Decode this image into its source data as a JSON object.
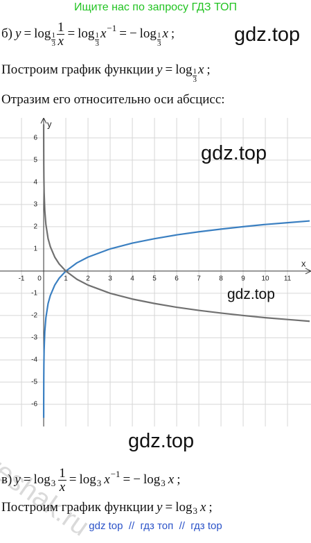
{
  "header": {
    "text": "Ищите нас по запросу ГДЗ ТОП"
  },
  "line_b": {
    "items": [
      "б)",
      "y",
      "=",
      "log",
      "1",
      "3",
      "1",
      "x",
      "=",
      "log",
      "1",
      "3",
      "x",
      "−1",
      "=",
      "−",
      "log",
      "1",
      "3",
      "x",
      ";"
    ]
  },
  "plot_b": {
    "items": [
      "Построим график функции",
      "y",
      "=",
      "log",
      "1",
      "3",
      "x",
      ";"
    ]
  },
  "reflect": {
    "text": "Отразим его относительно оси абсцисс:"
  },
  "watermarks": [
    "gdz.top",
    "gdz.top",
    "gdz.top",
    "gdz.top",
    "reshak.ru"
  ],
  "chart_data": {
    "type": "line",
    "x": [
      0.0007,
      0.0014,
      0.005,
      0.01,
      0.02,
      0.05,
      0.1,
      0.2,
      0.3,
      0.5,
      0.7,
      1,
      1.5,
      2,
      3,
      4,
      5,
      6,
      7,
      8,
      9,
      10,
      11,
      12
    ],
    "series": [
      {
        "name": "y = log3 x",
        "color": "#3a7fc1",
        "values": [
          -6.61,
          -5.98,
          -4.82,
          -4.19,
          -3.56,
          -2.73,
          -2.1,
          -1.46,
          -1.1,
          -0.63,
          -0.32,
          0,
          0.37,
          0.63,
          1,
          1.26,
          1.46,
          1.63,
          1.77,
          1.89,
          2,
          2.1,
          2.18,
          2.26
        ]
      },
      {
        "name": "y = log1/3 x",
        "color": "#707070",
        "values": [
          6.61,
          5.98,
          4.82,
          4.19,
          3.56,
          2.73,
          2.1,
          1.46,
          1.1,
          0.63,
          0.32,
          0,
          -0.37,
          -0.63,
          -1,
          -1.26,
          -1.46,
          -1.63,
          -1.77,
          -1.89,
          -2,
          -2.1,
          -2.18,
          -2.26
        ]
      }
    ],
    "x_label": "x",
    "y_label": "y",
    "xlim": [
      -1.97,
      12.06
    ],
    "ylim": [
      -7,
      6.9
    ],
    "xticks": [
      -1,
      0,
      1,
      2,
      3,
      4,
      5,
      6,
      7,
      8,
      9,
      10,
      11
    ],
    "yticks": [
      -6,
      -5,
      -4,
      -3,
      -2,
      -1,
      1,
      2,
      3,
      4,
      5,
      6
    ],
    "grid": true
  },
  "line_v": {
    "items": [
      "в)",
      "y",
      "=",
      "log",
      "3",
      "1",
      "x",
      "=",
      "log",
      "3",
      "x",
      "−1",
      "=",
      "−",
      "log",
      "3",
      "x",
      ";"
    ]
  },
  "plot_v": {
    "items": [
      "Построим график функции",
      "y",
      "=",
      "log",
      "3",
      "x",
      ";"
    ]
  },
  "footer": {
    "text": "gdz top  //  гдз топ  //  гдз top"
  }
}
